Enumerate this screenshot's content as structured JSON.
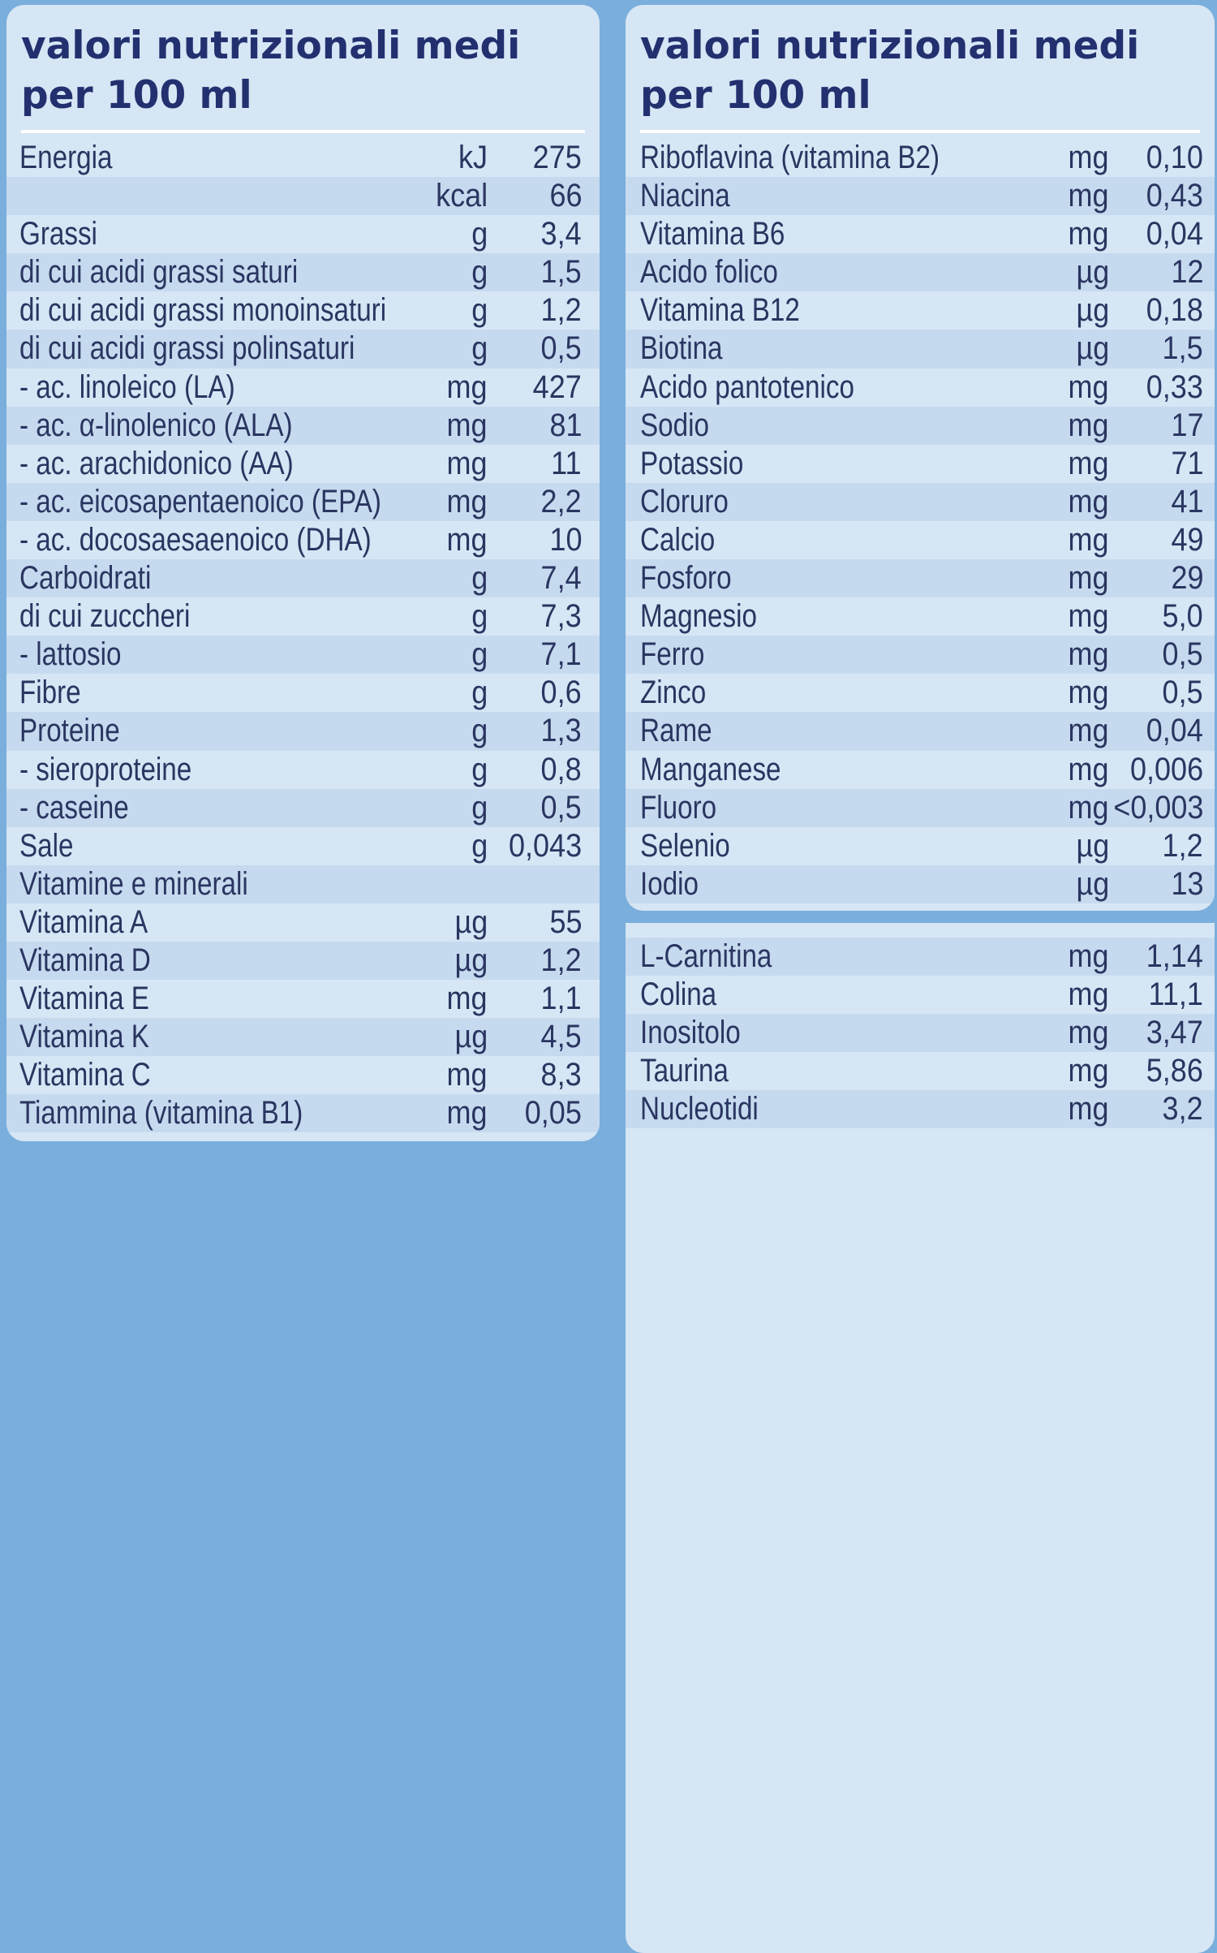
{
  "left_panel": {
    "title_line1": "valori nutrizionali medi",
    "title_line2": "per 100 ml",
    "rows": [
      {
        "label": "Energia",
        "unit": "kJ",
        "value": "275"
      },
      {
        "label": "",
        "unit": "kcal",
        "value": "66"
      },
      {
        "label": "Grassi",
        "unit": "g",
        "value": "3,4"
      },
      {
        "label": "di cui acidi grassi saturi",
        "unit": "g",
        "value": "1,5"
      },
      {
        "label": "di cui acidi grassi monoinsaturi",
        "unit": "g",
        "value": "1,2"
      },
      {
        "label": "di cui acidi grassi polinsaturi",
        "unit": "g",
        "value": "0,5"
      },
      {
        "label": "- ac. linoleico (LA)",
        "unit": "mg",
        "value": "427"
      },
      {
        "label": "- ac. α-linolenico (ALA)",
        "unit": "mg",
        "value": "81"
      },
      {
        "label": "- ac. arachidonico (AA)",
        "unit": "mg",
        "value": "11"
      },
      {
        "label": "- ac. eicosapentaenoico (EPA)",
        "unit": "mg",
        "value": "2,2"
      },
      {
        "label": "- ac. docosaesaenoico (DHA)",
        "unit": "mg",
        "value": "10"
      },
      {
        "label": "Carboidrati",
        "unit": "g",
        "value": "7,4"
      },
      {
        "label": "di cui zuccheri",
        "unit": "g",
        "value": "7,3"
      },
      {
        "label": "- lattosio",
        "unit": "g",
        "value": "7,1"
      },
      {
        "label": "Fibre",
        "unit": "g",
        "value": "0,6"
      },
      {
        "label": "Proteine",
        "unit": "g",
        "value": "1,3"
      },
      {
        "label": "- sieroproteine",
        "unit": "g",
        "value": "0,8"
      },
      {
        "label": "- caseine",
        "unit": "g",
        "value": "0,5"
      },
      {
        "label": "Sale",
        "unit": "g",
        "value": "0,043"
      },
      {
        "label": "Vitamine e minerali",
        "unit": "",
        "value": ""
      },
      {
        "label": "Vitamina A",
        "unit": "µg",
        "value": "55"
      },
      {
        "label": "Vitamina D",
        "unit": "µg",
        "value": "1,2"
      },
      {
        "label": "Vitamina E",
        "unit": "mg",
        "value": "1,1"
      },
      {
        "label": "Vitamina K",
        "unit": "µg",
        "value": "4,5"
      },
      {
        "label": "Vitamina C",
        "unit": "mg",
        "value": "8,3"
      },
      {
        "label": "Tiammina (vitamina B1)",
        "unit": "mg",
        "value": "0,05"
      }
    ]
  },
  "right_panel": {
    "title_line1": "valori nutrizionali medi",
    "title_line2": "per 100 ml",
    "rows": [
      {
        "label": "Riboflavina (vitamina B2)",
        "unit": "mg",
        "value": "0,10"
      },
      {
        "label": "Niacina",
        "unit": "mg",
        "value": "0,43"
      },
      {
        "label": "Vitamina B6",
        "unit": "mg",
        "value": "0,04"
      },
      {
        "label": "Acido folico",
        "unit": "µg",
        "value": "12"
      },
      {
        "label": "Vitamina B12",
        "unit": "µg",
        "value": "0,18"
      },
      {
        "label": "Biotina",
        "unit": "µg",
        "value": "1,5"
      },
      {
        "label": "Acido pantotenico",
        "unit": "mg",
        "value": "0,33"
      },
      {
        "label": "Sodio",
        "unit": "mg",
        "value": "17"
      },
      {
        "label": "Potassio",
        "unit": "mg",
        "value": "71"
      },
      {
        "label": "Cloruro",
        "unit": "mg",
        "value": "41"
      },
      {
        "label": "Calcio",
        "unit": "mg",
        "value": "49"
      },
      {
        "label": "Fosforo",
        "unit": "mg",
        "value": "29"
      },
      {
        "label": "Magnesio",
        "unit": "mg",
        "value": "5,0"
      },
      {
        "label": "Ferro",
        "unit": "mg",
        "value": "0,5"
      },
      {
        "label": "Zinco",
        "unit": "mg",
        "value": "0,5"
      },
      {
        "label": "Rame",
        "unit": "mg",
        "value": "0,04"
      },
      {
        "label": "Manganese",
        "unit": "mg",
        "value": "0,006"
      },
      {
        "label": "Fluoro",
        "unit": "mg",
        "value": "<0,003"
      },
      {
        "label": "Selenio",
        "unit": "µg",
        "value": "1,2"
      },
      {
        "label": "Iodio",
        "unit": "µg",
        "value": "13"
      }
    ],
    "extra_rows": [
      {
        "label": "L-Carnitina",
        "unit": "mg",
        "value": "1,14"
      },
      {
        "label": "Colina",
        "unit": "mg",
        "value": "11,1"
      },
      {
        "label": "Inositolo",
        "unit": "mg",
        "value": "3,47"
      },
      {
        "label": "Taurina",
        "unit": "mg",
        "value": "5,86"
      },
      {
        "label": "Nucleotidi",
        "unit": "mg",
        "value": "3,2"
      }
    ]
  }
}
